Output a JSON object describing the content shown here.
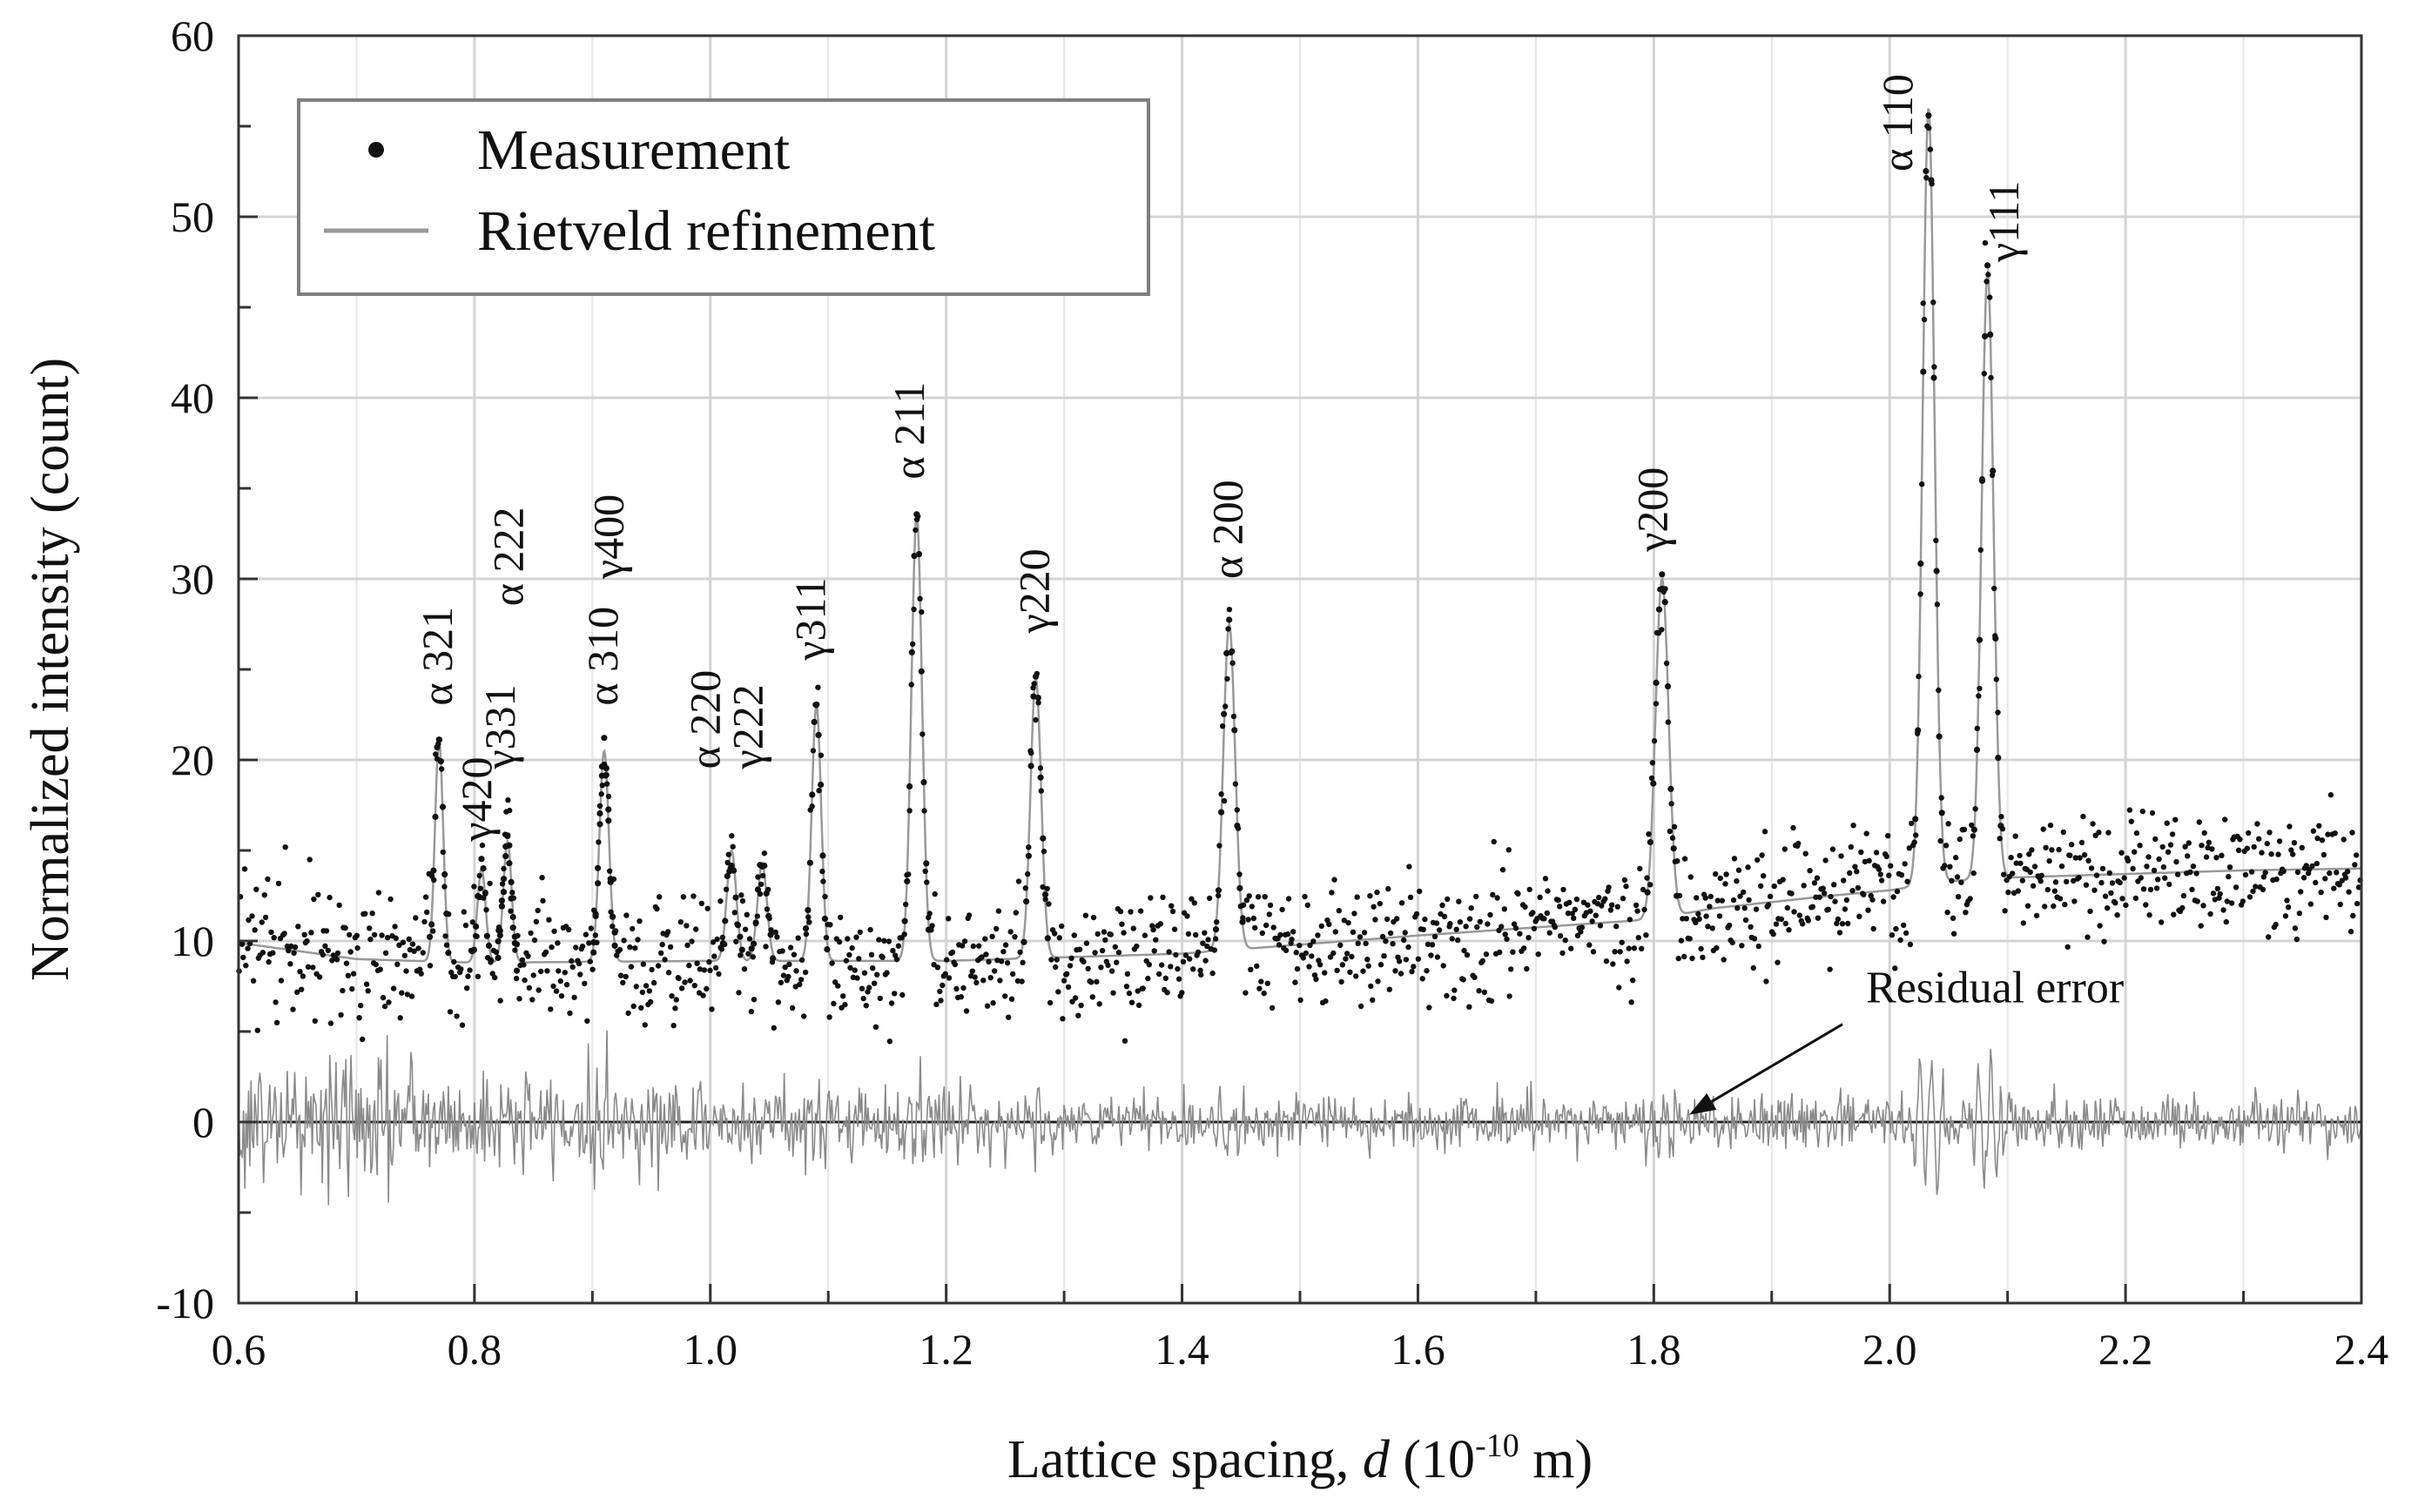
{
  "chart_data": {
    "type": "scatter",
    "title": "",
    "xlabel": {
      "prefix": "Lattice spacing, ",
      "symbol": "d",
      "unit_open": " (10",
      "unit_exp": "-10",
      "unit_close": " m)"
    },
    "ylabel": "Normalized intensity (count)",
    "xlim": [
      0.6,
      2.4
    ],
    "ylim": [
      -10,
      60
    ],
    "x_ticks": [
      "0.6",
      "0.8",
      "1.0",
      "1.2",
      "1.4",
      "1.6",
      "1.8",
      "2.0",
      "2.2",
      "2.4"
    ],
    "x_tick_values": [
      0.6,
      0.8,
      1.0,
      1.2,
      1.4,
      1.6,
      1.8,
      2.0,
      2.2,
      2.4
    ],
    "y_ticks": [
      "-10",
      "0",
      "10",
      "20",
      "30",
      "40",
      "50",
      "60"
    ],
    "y_tick_values": [
      -10,
      0,
      10,
      20,
      30,
      40,
      50,
      60
    ],
    "grid": true,
    "legend": {
      "position": "top-left",
      "entries": [
        {
          "label": "Measurement",
          "marker": "dot",
          "color": "#111111"
        },
        {
          "label": "Rietveld refinement",
          "marker": "line",
          "color": "#999999"
        }
      ]
    },
    "series": [
      {
        "name": "Measurement",
        "kind": "points",
        "color": "#111111",
        "x_range": [
          0.6,
          2.4
        ],
        "points_count": 1500,
        "noise": 1.6
      },
      {
        "name": "Rietveld refinement",
        "kind": "line",
        "color": "#999999",
        "background_curve": [
          {
            "x": 0.6,
            "y": 9.9
          },
          {
            "x": 0.7,
            "y": 9.0
          },
          {
            "x": 0.8,
            "y": 8.8
          },
          {
            "x": 1.0,
            "y": 8.9
          },
          {
            "x": 1.2,
            "y": 8.9
          },
          {
            "x": 1.4,
            "y": 9.3
          },
          {
            "x": 1.6,
            "y": 10.3
          },
          {
            "x": 1.8,
            "y": 11.2
          },
          {
            "x": 1.85,
            "y": 11.8
          },
          {
            "x": 1.95,
            "y": 12.5
          },
          {
            "x": 2.0,
            "y": 12.8
          },
          {
            "x": 2.05,
            "y": 13.3
          },
          {
            "x": 2.1,
            "y": 13.5
          },
          {
            "x": 2.2,
            "y": 13.7
          },
          {
            "x": 2.3,
            "y": 13.9
          },
          {
            "x": 2.4,
            "y": 14.0
          }
        ]
      },
      {
        "name": "Residual error",
        "kind": "residual",
        "color": "#8a8a8a",
        "baseline": 0
      }
    ],
    "peaks": [
      {
        "phase": "α",
        "hkl": "321",
        "d": 0.77,
        "intensity": 21.0,
        "width": 0.0035
      },
      {
        "phase": "γ",
        "hkl": "420",
        "d": 0.806,
        "intensity": 14.0,
        "width": 0.0035
      },
      {
        "phase": "γ",
        "hkl": "331",
        "d": 0.828,
        "intensity": 15.5,
        "width": 0.0035
      },
      {
        "phase": "α",
        "hkl": "222",
        "d": 0.828,
        "intensity": 15.5,
        "width": 0.0035
      },
      {
        "phase": "α",
        "hkl": "310",
        "d": 0.91,
        "intensity": 20.5,
        "width": 0.004
      },
      {
        "phase": "γ",
        "hkl": "400",
        "d": 0.91,
        "intensity": 20.5,
        "width": 0.004
      },
      {
        "phase": "α",
        "hkl": "220",
        "d": 1.018,
        "intensity": 15.0,
        "width": 0.004
      },
      {
        "phase": "γ",
        "hkl": "222",
        "d": 1.044,
        "intensity": 14.3,
        "width": 0.004
      },
      {
        "phase": "γ",
        "hkl": "311",
        "d": 1.09,
        "intensity": 23.0,
        "width": 0.004
      },
      {
        "phase": "α",
        "hkl": "211",
        "d": 1.175,
        "intensity": 33.5,
        "width": 0.0045
      },
      {
        "phase": "γ",
        "hkl": "220",
        "d": 1.276,
        "intensity": 24.5,
        "width": 0.0045
      },
      {
        "phase": "α",
        "hkl": "200",
        "d": 1.44,
        "intensity": 27.5,
        "width": 0.005
      },
      {
        "phase": "γ",
        "hkl": "200",
        "d": 1.807,
        "intensity": 30.0,
        "width": 0.0055
      },
      {
        "phase": "α",
        "hkl": "110",
        "d": 2.033,
        "intensity": 56.0,
        "width": 0.005
      },
      {
        "phase": "γ",
        "hkl": "111",
        "d": 2.083,
        "intensity": 47.0,
        "width": 0.005
      }
    ],
    "peak_labels": [
      {
        "id": "a321",
        "text": "α 321",
        "anchor_d": 0.77,
        "anchor_y": 23.0
      },
      {
        "id": "g420",
        "text": "γ420",
        "anchor_d": 0.803,
        "anchor_y": 15.5
      },
      {
        "id": "g331",
        "text": "γ331",
        "anchor_d": 0.823,
        "anchor_y": 19.5
      },
      {
        "id": "a222",
        "text": "α 222",
        "anchor_d": 0.83,
        "anchor_y": 28.5
      },
      {
        "id": "a310",
        "text": "α 310",
        "anchor_d": 0.91,
        "anchor_y": 23.0
      },
      {
        "id": "g400",
        "text": "γ400",
        "anchor_d": 0.915,
        "anchor_y": 30.0
      },
      {
        "id": "a220",
        "text": "α 220",
        "anchor_d": 0.997,
        "anchor_y": 19.5
      },
      {
        "id": "g222",
        "text": "γ222",
        "anchor_d": 1.033,
        "anchor_y": 19.5
      },
      {
        "id": "g311",
        "text": "γ311",
        "anchor_d": 1.086,
        "anchor_y": 25.5
      },
      {
        "id": "a211",
        "text": "α 211",
        "anchor_d": 1.17,
        "anchor_y": 35.5
      },
      {
        "id": "g220",
        "text": "γ220",
        "anchor_d": 1.276,
        "anchor_y": 27.0
      },
      {
        "id": "a200",
        "text": "α 200",
        "anchor_d": 1.44,
        "anchor_y": 30.0
      },
      {
        "id": "g200",
        "text": "γ200",
        "anchor_d": 1.8,
        "anchor_y": 31.5
      },
      {
        "id": "a110",
        "text": "α 110",
        "anchor_d": 2.008,
        "anchor_y": 52.5
      },
      {
        "id": "g111",
        "text": "γ111",
        "anchor_d": 2.098,
        "anchor_y": 47.5
      }
    ],
    "annotations": [
      {
        "text": "Residual error",
        "text_anchor_d": 1.98,
        "text_anchor_y": 6.6,
        "arrow_from_d": 1.96,
        "arrow_from_y": 5.4,
        "arrow_to_d": 1.83,
        "arrow_to_y": 0.4
      }
    ]
  }
}
